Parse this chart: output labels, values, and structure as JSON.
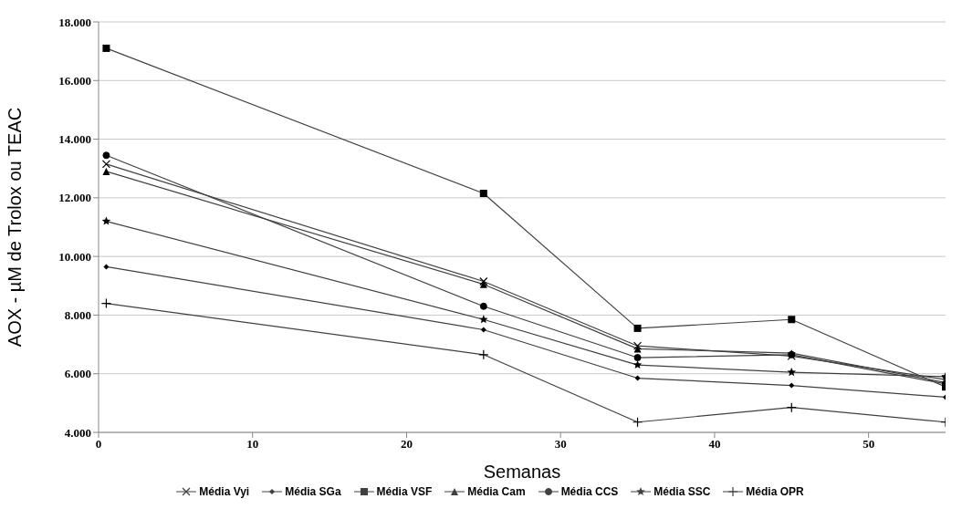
{
  "chart_data": {
    "type": "line",
    "xlabel": "Semanas",
    "ylabel": "AOX - µM de Trolox ou TEAC",
    "xlim": [
      0,
      55
    ],
    "xticks": [
      0,
      10,
      20,
      30,
      40,
      50
    ],
    "ylim": [
      4000,
      18000
    ],
    "yticks": [
      {
        "value": 4000,
        "label": "4.000"
      },
      {
        "value": 6000,
        "label": "6.000"
      },
      {
        "value": 8000,
        "label": "8.000"
      },
      {
        "value": 10000,
        "label": "10.000"
      },
      {
        "value": 12000,
        "label": "12.000"
      },
      {
        "value": 14000,
        "label": "14.000"
      },
      {
        "value": 16000,
        "label": "16.000"
      },
      {
        "value": 18000,
        "label": "18.000"
      }
    ],
    "x": [
      0.5,
      25,
      35,
      45,
      55
    ],
    "grid": "y",
    "legend": "bottom",
    "line_style": "solid",
    "series": [
      {
        "name": "Média Vyi",
        "color": "#404040",
        "marker": "x",
        "values": [
          13150,
          9150,
          6950,
          6600,
          5800
        ]
      },
      {
        "name": "Média SGa",
        "color": "#404040",
        "marker": "diamond",
        "values": [
          9650,
          7500,
          5850,
          5600,
          5200
        ]
      },
      {
        "name": "Média VSF",
        "color": "#404040",
        "marker": "square",
        "values": [
          17100,
          12150,
          7550,
          7850,
          5550
        ]
      },
      {
        "name": "Média Cam",
        "color": "#404040",
        "marker": "triangle",
        "values": [
          12900,
          9050,
          6850,
          6700,
          5700
        ]
      },
      {
        "name": "Média CCS",
        "color": "#404040",
        "marker": "circle",
        "values": [
          13450,
          8300,
          6550,
          6650,
          5650
        ]
      },
      {
        "name": "Média SSC",
        "color": "#404040",
        "marker": "star",
        "values": [
          11200,
          7850,
          6300,
          6050,
          5900
        ]
      },
      {
        "name": "Média OPR",
        "color": "#404040",
        "marker": "cross",
        "values": [
          8400,
          6650,
          4350,
          4850,
          4350
        ]
      }
    ]
  }
}
